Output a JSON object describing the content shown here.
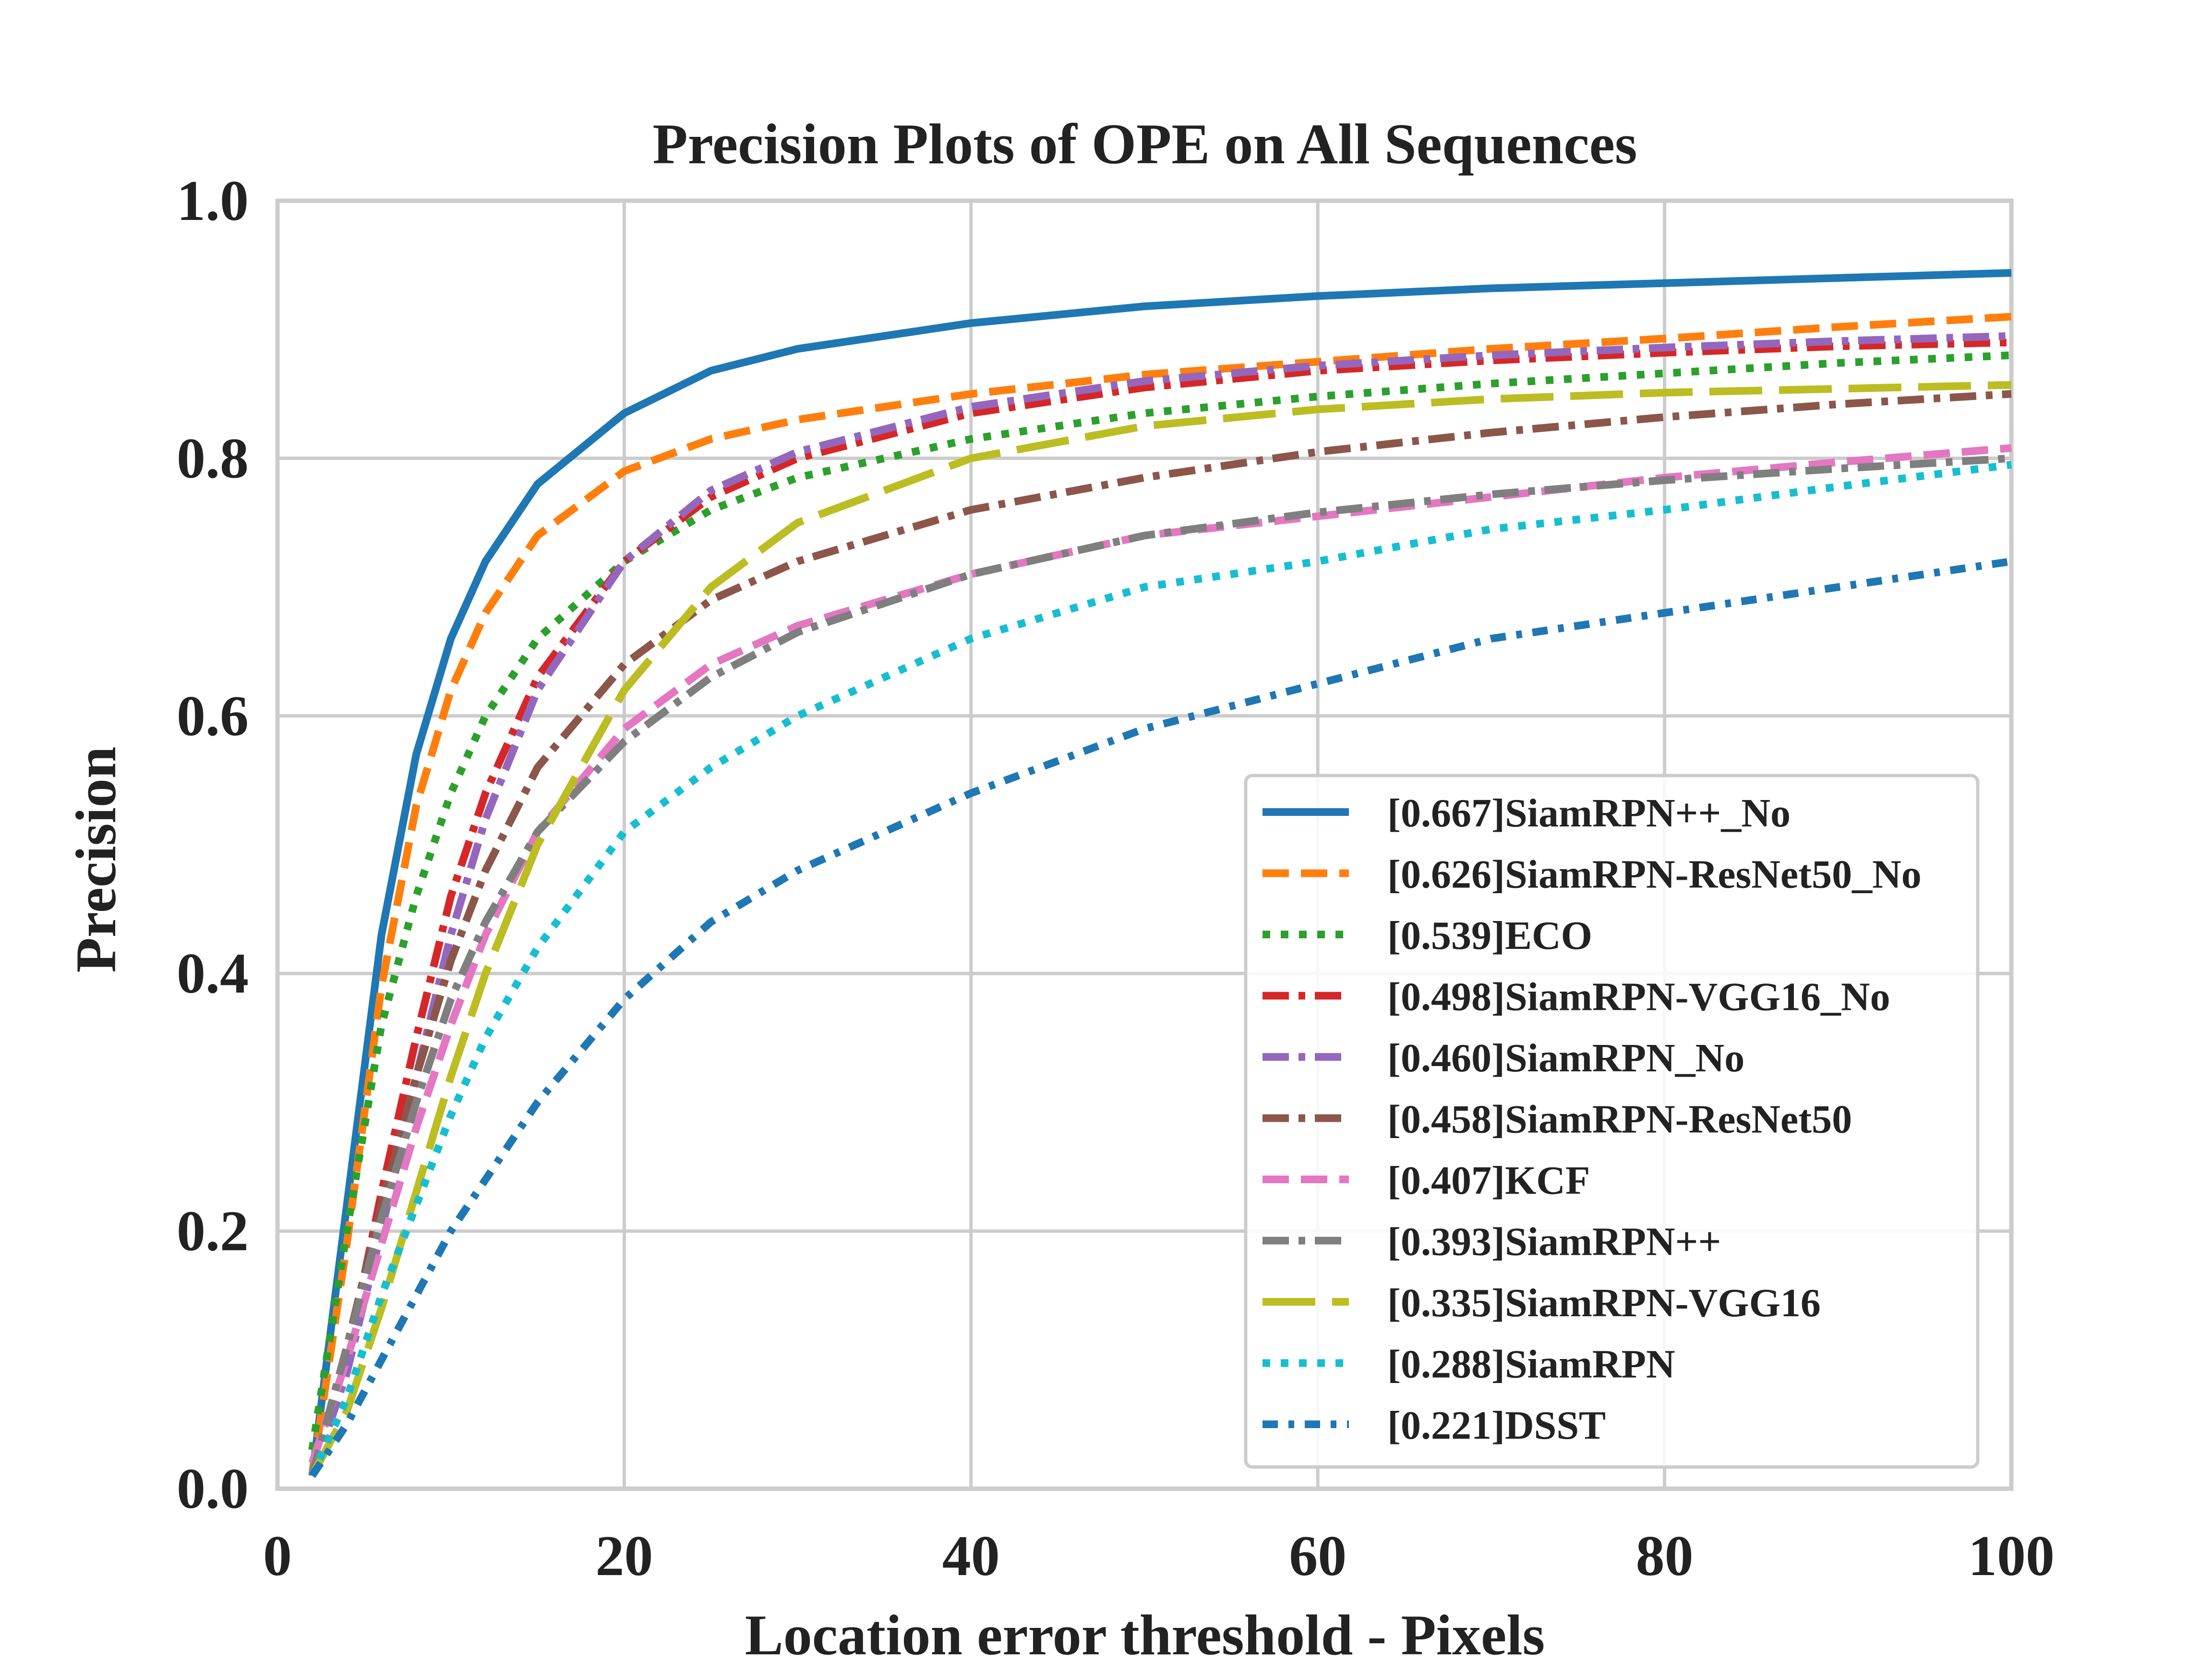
{
  "chart_data": {
    "type": "line",
    "title": "Precision Plots of OPE on All Sequences",
    "xlabel": "Location error threshold - Pixels",
    "ylabel": "Precision",
    "xlim": [
      0,
      100
    ],
    "ylim": [
      0,
      1
    ],
    "xticks": [
      "0",
      "20",
      "40",
      "60",
      "80",
      "100"
    ],
    "yticks": [
      "0.0",
      "0.2",
      "0.4",
      "0.6",
      "0.8",
      "1.0"
    ],
    "grid": true,
    "legend_position": "lower-right",
    "x": [
      2,
      4,
      6,
      8,
      10,
      12,
      15,
      20,
      25,
      30,
      40,
      50,
      60,
      70,
      80,
      90,
      100
    ],
    "series": [
      {
        "name": "[0.667]SiamRPN++_No",
        "color": "#1f77b4",
        "style": "solid",
        "values": [
          0.01,
          0.22,
          0.43,
          0.57,
          0.66,
          0.72,
          0.78,
          0.835,
          0.868,
          0.885,
          0.905,
          0.918,
          0.926,
          0.932,
          0.936,
          0.94,
          0.944
        ]
      },
      {
        "name": "[0.626]SiamRPN-ResNet50_No",
        "color": "#ff7f0e",
        "style": "dashed",
        "values": [
          0.01,
          0.19,
          0.39,
          0.53,
          0.62,
          0.68,
          0.74,
          0.79,
          0.815,
          0.83,
          0.85,
          0.865,
          0.875,
          0.885,
          0.893,
          0.902,
          0.91
        ]
      },
      {
        "name": "[0.539]ECO",
        "color": "#2ca02c",
        "style": "dotted",
        "values": [
          0.03,
          0.2,
          0.36,
          0.46,
          0.54,
          0.6,
          0.66,
          0.72,
          0.76,
          0.785,
          0.815,
          0.835,
          0.848,
          0.858,
          0.866,
          0.874,
          0.88
        ]
      },
      {
        "name": "[0.498]SiamRPN-VGG16_No",
        "color": "#d62728",
        "style": "dashdot",
        "values": [
          0.01,
          0.1,
          0.23,
          0.35,
          0.46,
          0.54,
          0.63,
          0.72,
          0.77,
          0.8,
          0.835,
          0.855,
          0.868,
          0.876,
          0.882,
          0.887,
          0.89
        ]
      },
      {
        "name": "[0.460]SiamRPN_No",
        "color": "#9467bd",
        "style": "dashdot",
        "values": [
          0.01,
          0.09,
          0.2,
          0.32,
          0.43,
          0.52,
          0.62,
          0.72,
          0.775,
          0.805,
          0.84,
          0.86,
          0.872,
          0.88,
          0.886,
          0.891,
          0.895
        ]
      },
      {
        "name": "[0.458]SiamRPN-ResNet50",
        "color": "#8c564b",
        "style": "dashdot",
        "values": [
          0.01,
          0.11,
          0.22,
          0.32,
          0.41,
          0.48,
          0.56,
          0.64,
          0.69,
          0.72,
          0.76,
          0.785,
          0.805,
          0.82,
          0.832,
          0.842,
          0.85
        ]
      },
      {
        "name": "[0.407]KCF",
        "color": "#e377c2",
        "style": "dashed",
        "values": [
          0.02,
          0.1,
          0.19,
          0.28,
          0.36,
          0.43,
          0.51,
          0.59,
          0.64,
          0.67,
          0.71,
          0.74,
          0.755,
          0.77,
          0.785,
          0.797,
          0.808
        ]
      },
      {
        "name": "[0.393]SiamRPN++",
        "color": "#7f7f7f",
        "style": "dashdot",
        "values": [
          0.01,
          0.11,
          0.21,
          0.3,
          0.38,
          0.44,
          0.51,
          0.58,
          0.63,
          0.665,
          0.71,
          0.74,
          0.758,
          0.772,
          0.783,
          0.792,
          0.8
        ]
      },
      {
        "name": "[0.335]SiamRPN-VGG16",
        "color": "#bcbd22",
        "style": "longdash",
        "values": [
          0.01,
          0.06,
          0.14,
          0.23,
          0.32,
          0.4,
          0.5,
          0.62,
          0.7,
          0.75,
          0.8,
          0.825,
          0.838,
          0.846,
          0.851,
          0.854,
          0.857
        ]
      },
      {
        "name": "[0.288]SiamRPN",
        "color": "#17becf",
        "style": "dotted",
        "values": [
          0.01,
          0.07,
          0.15,
          0.22,
          0.29,
          0.35,
          0.42,
          0.51,
          0.56,
          0.6,
          0.66,
          0.7,
          0.72,
          0.745,
          0.76,
          0.778,
          0.795
        ]
      },
      {
        "name": "[0.221]DSST",
        "color": "#1f77b4",
        "style": "densedashdot",
        "values": [
          0.01,
          0.05,
          0.1,
          0.15,
          0.2,
          0.24,
          0.3,
          0.38,
          0.44,
          0.48,
          0.54,
          0.59,
          0.625,
          0.66,
          0.68,
          0.7,
          0.72
        ]
      }
    ]
  }
}
